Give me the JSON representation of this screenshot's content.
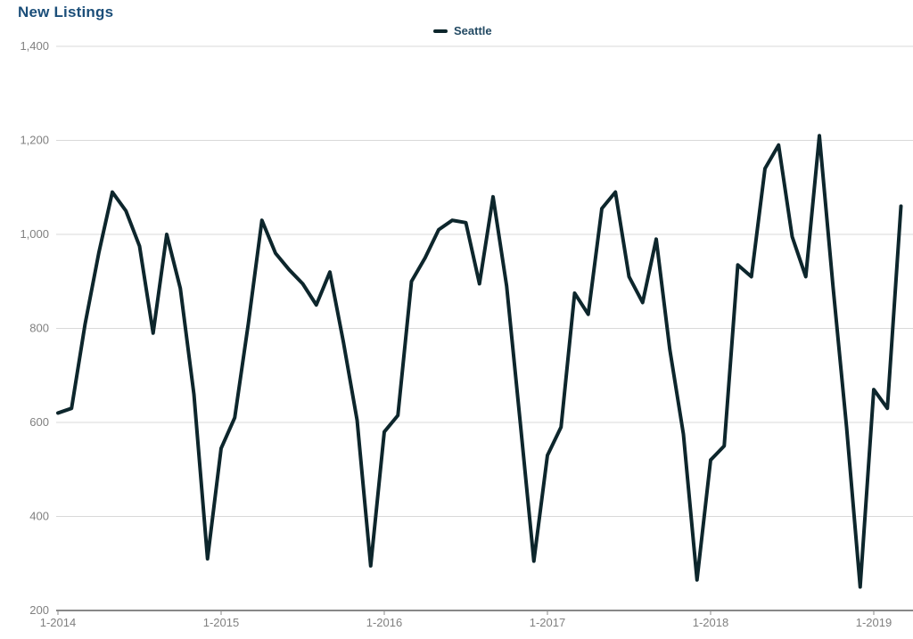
{
  "title": "New Listings",
  "legend": {
    "series_label": "Seattle"
  },
  "colors": {
    "line": "#0d262c",
    "title": "#1b4e79",
    "legend_text": "#234a63",
    "axis_text": "#808080",
    "gridline": "#d9d9d9",
    "axis_line": "#888888",
    "background": "#ffffff"
  },
  "chart_data": {
    "type": "line",
    "title": "New Listings",
    "legend_position": "top-center",
    "grid": "horizontal",
    "ylim": [
      200,
      1400
    ],
    "y_ticks": [
      200,
      400,
      600,
      800,
      1000,
      1200,
      1400
    ],
    "y_tick_labels": [
      "200",
      "400",
      "600",
      "800",
      "1,000",
      "1,200",
      "1,400"
    ],
    "x_tick_positions": [
      0,
      12,
      24,
      36,
      48,
      60
    ],
    "x_tick_labels": [
      "1-2014",
      "1-2015",
      "1-2016",
      "1-2017",
      "1-2018",
      "1-2019"
    ],
    "x": [
      "1-2014",
      "2-2014",
      "3-2014",
      "4-2014",
      "5-2014",
      "6-2014",
      "7-2014",
      "8-2014",
      "9-2014",
      "10-2014",
      "11-2014",
      "12-2014",
      "1-2015",
      "2-2015",
      "3-2015",
      "4-2015",
      "5-2015",
      "6-2015",
      "7-2015",
      "8-2015",
      "9-2015",
      "10-2015",
      "11-2015",
      "12-2015",
      "1-2016",
      "2-2016",
      "3-2016",
      "4-2016",
      "5-2016",
      "6-2016",
      "7-2016",
      "8-2016",
      "9-2016",
      "10-2016",
      "11-2016",
      "12-2016",
      "1-2017",
      "2-2017",
      "3-2017",
      "4-2017",
      "5-2017",
      "6-2017",
      "7-2017",
      "8-2017",
      "9-2017",
      "10-2017",
      "11-2017",
      "12-2017",
      "1-2018",
      "2-2018",
      "3-2018",
      "4-2018",
      "5-2018",
      "6-2018",
      "7-2018",
      "8-2018",
      "9-2018",
      "10-2018",
      "11-2018",
      "12-2018",
      "1-2019",
      "2-2019",
      "3-2019"
    ],
    "series": [
      {
        "name": "Seattle",
        "values": [
          620,
          630,
          810,
          960,
          1090,
          1050,
          975,
          790,
          1000,
          885,
          660,
          310,
          545,
          610,
          810,
          1030,
          960,
          925,
          895,
          850,
          920,
          770,
          605,
          295,
          580,
          615,
          900,
          950,
          1010,
          1030,
          1025,
          895,
          1080,
          890,
          600,
          305,
          530,
          590,
          875,
          830,
          1055,
          1090,
          910,
          855,
          990,
          755,
          575,
          265,
          520,
          550,
          935,
          910,
          1140,
          1190,
          995,
          910,
          1210,
          890,
          590,
          250,
          670,
          630,
          1060
        ]
      }
    ]
  }
}
